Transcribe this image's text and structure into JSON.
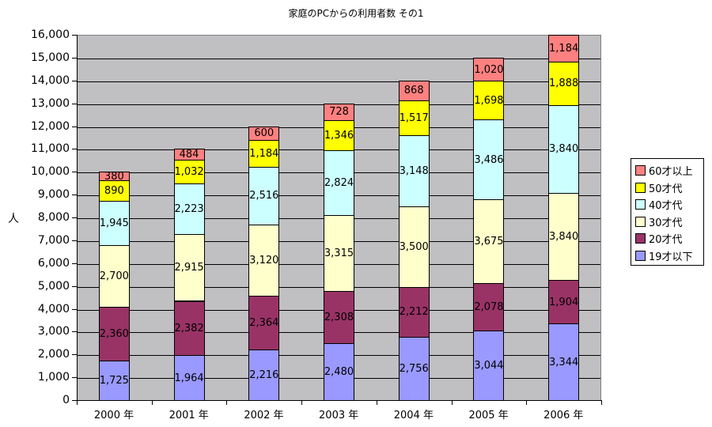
{
  "title": "家庭のPCからの利用者数 その1",
  "y_axis_label": "人",
  "y_ticks": [
    "0",
    "1,000",
    "2,000",
    "3,000",
    "4,000",
    "5,000",
    "6,000",
    "7,000",
    "8,000",
    "9,000",
    "10,000",
    "11,000",
    "12,000",
    "13,000",
    "14,000",
    "15,000",
    "16,000"
  ],
  "colors": {
    "19才以下": "#9999ff",
    "20才代": "#993366",
    "30才代": "#ffffcc",
    "40才代": "#ccffff",
    "50才代": "#ffff00",
    "60才以上": "#ff8080",
    "plot_background": "#c0c0c0"
  },
  "legend": [
    {
      "label": "60才以上",
      "color": "#ff8080"
    },
    {
      "label": "50才代",
      "color": "#ffff00"
    },
    {
      "label": "40才代",
      "color": "#ccffff"
    },
    {
      "label": "30才代",
      "color": "#ffffcc"
    },
    {
      "label": "20才代",
      "color": "#993366"
    },
    {
      "label": "19才以下",
      "color": "#9999ff"
    }
  ],
  "chart_data": {
    "type": "bar",
    "stacked": true,
    "title": "家庭のPCからの利用者数 その1",
    "xlabel": "",
    "ylabel": "人",
    "ylim": [
      0,
      16000
    ],
    "ytick_step": 1000,
    "grid": true,
    "legend_position": "right",
    "categories": [
      "2000年",
      "2001年",
      "2002年",
      "2003年",
      "2004年",
      "2005年",
      "2006年"
    ],
    "series": [
      {
        "name": "19才以下",
        "color": "#9999ff",
        "values": [
          1725,
          1964,
          2216,
          2480,
          2756,
          3044,
          3344
        ]
      },
      {
        "name": "20才代",
        "color": "#993366",
        "values": [
          2360,
          2382,
          2364,
          2308,
          2212,
          2078,
          1904
        ]
      },
      {
        "name": "30才代",
        "color": "#ffffcc",
        "values": [
          2700,
          2915,
          3120,
          3315,
          3500,
          3675,
          3840
        ]
      },
      {
        "name": "40才代",
        "color": "#ccffff",
        "values": [
          1945,
          2223,
          2516,
          2824,
          3148,
          3486,
          3840
        ]
      },
      {
        "name": "50才代",
        "color": "#ffff00",
        "values": [
          890,
          1032,
          1184,
          1346,
          1517,
          1698,
          1888
        ]
      },
      {
        "name": "60才以上",
        "color": "#ff8080",
        "values": [
          380,
          484,
          600,
          728,
          868,
          1020,
          1184
        ]
      }
    ],
    "totals": [
      10000,
      11000,
      12000,
      13000,
      14000,
      15000,
      16000
    ]
  }
}
